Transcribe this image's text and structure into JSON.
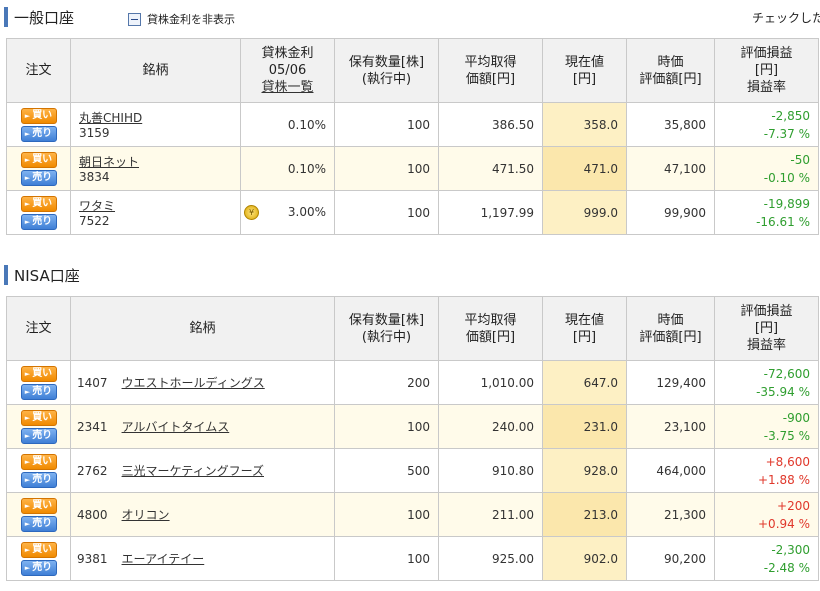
{
  "general": {
    "title": "一般口座",
    "toggle_label": "貸株金利を非表示",
    "top_right": "チェックした",
    "headers": {
      "order": "注文",
      "name": "銘柄",
      "lend_rate_line1": "貸株金利",
      "lend_rate_line2": "05/06",
      "lend_rate_link": "貸株一覧",
      "qty_line1": "保有数量[株]",
      "qty_line2": "(執行中)",
      "avg_line1": "平均取得",
      "avg_line2": "価額[円]",
      "price_line1": "現在値",
      "price_line2": "[円]",
      "mv_line1": "時価",
      "mv_line2": "評価額[円]",
      "pl_line1": "評価損益",
      "pl_line2": "[円]",
      "pl_line3": "損益率"
    },
    "rows": [
      {
        "name": "丸善CHIHD",
        "code": "3159",
        "rate": "0.10%",
        "qty": "100",
        "avg": "386.50",
        "price": "358.0",
        "mv": "35,800",
        "pl": "-2,850",
        "pct": "-7.37 %"
      },
      {
        "name": "朝日ネット",
        "code": "3834",
        "rate": "0.10%",
        "qty": "100",
        "avg": "471.50",
        "price": "471.0",
        "mv": "47,100",
        "pl": "-50",
        "pct": "-0.10 %"
      },
      {
        "name": "ワタミ",
        "code": "7522",
        "rate": "3.00%",
        "qty": "100",
        "avg": "1,197.99",
        "price": "999.0",
        "mv": "99,900",
        "pl": "-19,899",
        "pct": "-16.61 %"
      }
    ]
  },
  "nisa": {
    "title": "NISA口座",
    "headers": {
      "order": "注文",
      "name": "銘柄",
      "qty_line1": "保有数量[株]",
      "qty_line2": "(執行中)",
      "avg_line1": "平均取得",
      "avg_line2": "価額[円]",
      "price_line1": "現在値",
      "price_line2": "[円]",
      "mv_line1": "時価",
      "mv_line2": "評価額[円]",
      "pl_line1": "評価損益",
      "pl_line2": "[円]",
      "pl_line3": "損益率"
    },
    "rows": [
      {
        "code": "1407",
        "name": "ウエストホールディングス",
        "qty": "200",
        "avg": "1,010.00",
        "price": "647.0",
        "mv": "129,400",
        "pl": "-72,600",
        "pct": "-35.94 %"
      },
      {
        "code": "2341",
        "name": "アルバイトタイムス",
        "qty": "100",
        "avg": "240.00",
        "price": "231.0",
        "mv": "23,100",
        "pl": "-900",
        "pct": "-3.75 %"
      },
      {
        "code": "2762",
        "name": "三光マーケティングフーズ",
        "qty": "500",
        "avg": "910.80",
        "price": "928.0",
        "mv": "464,000",
        "pl": "+8,600",
        "pct": "+1.88 %"
      },
      {
        "code": "4800",
        "name": "オリコン",
        "qty": "100",
        "avg": "211.00",
        "price": "213.0",
        "mv": "21,300",
        "pl": "+200",
        "pct": "+0.94 %"
      },
      {
        "code": "9381",
        "name": "エーアイテイー",
        "qty": "100",
        "avg": "925.00",
        "price": "902.0",
        "mv": "90,200",
        "pl": "-2,300",
        "pct": "-2.48 %"
      }
    ]
  },
  "buttons": {
    "buy": "買い",
    "sell": "売り"
  },
  "colors": {
    "gain": "#2f9e2f",
    "loss": "#e0382b",
    "price_bg": "#fdf0c4",
    "section_bar": "#4a78b8"
  }
}
